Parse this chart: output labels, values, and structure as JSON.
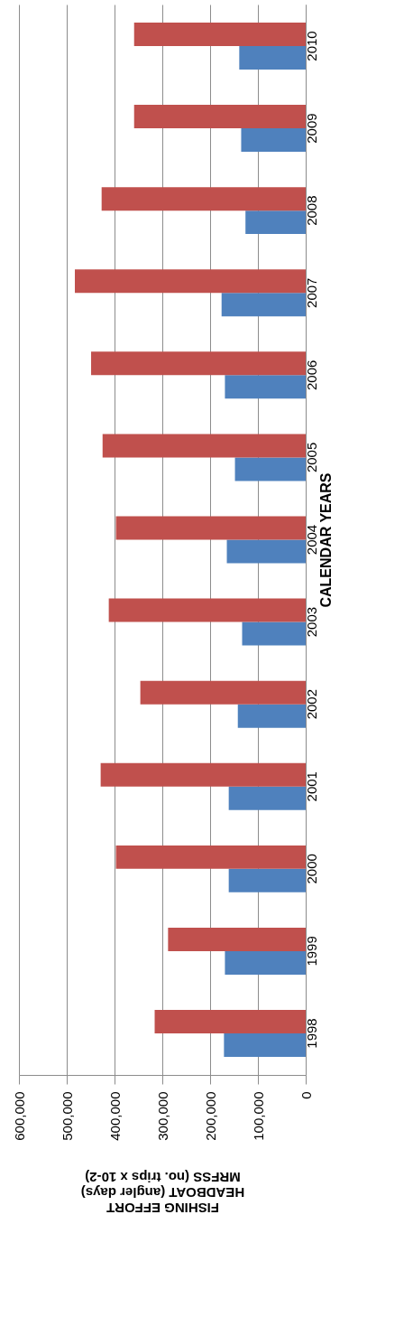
{
  "chart_data": {
    "type": "bar",
    "orientation": "horizontal",
    "ylabel": "CALENDAR YEARS",
    "xlabel": "FISHING EFFORT\nHEADBOAT (angler days)\nMRFSS (no. trips x 10-2)",
    "categories": [
      "2010",
      "2009",
      "2008",
      "2007",
      "2006",
      "2005",
      "2004",
      "2003",
      "2002",
      "2001",
      "2000",
      "1999",
      "1998"
    ],
    "series": [
      {
        "color": "#4f81bd",
        "values": [
          139000,
          135000,
          126000,
          176000,
          169000,
          148000,
          165000,
          133000,
          142000,
          161000,
          161000,
          169000,
          171000
        ]
      },
      {
        "color": "#c0504d",
        "values": [
          359000,
          359000,
          427000,
          483000,
          449000,
          425000,
          397000,
          412000,
          346000,
          429000,
          397000,
          288000,
          316000
        ]
      }
    ],
    "xlim": [
      600000,
      0
    ],
    "xticks": [
      0,
      {
        "value": 100000,
        "label": "100,000"
      },
      {
        "value": 200000,
        "label": "200,000"
      },
      {
        "value": 300000,
        "label": "300,000"
      },
      {
        "value": 400000,
        "label": "400,000"
      },
      {
        "value": 500000,
        "label": "500,000"
      },
      {
        "value": 600000,
        "label": "600,000"
      }
    ],
    "grid": true,
    "legend": false
  }
}
